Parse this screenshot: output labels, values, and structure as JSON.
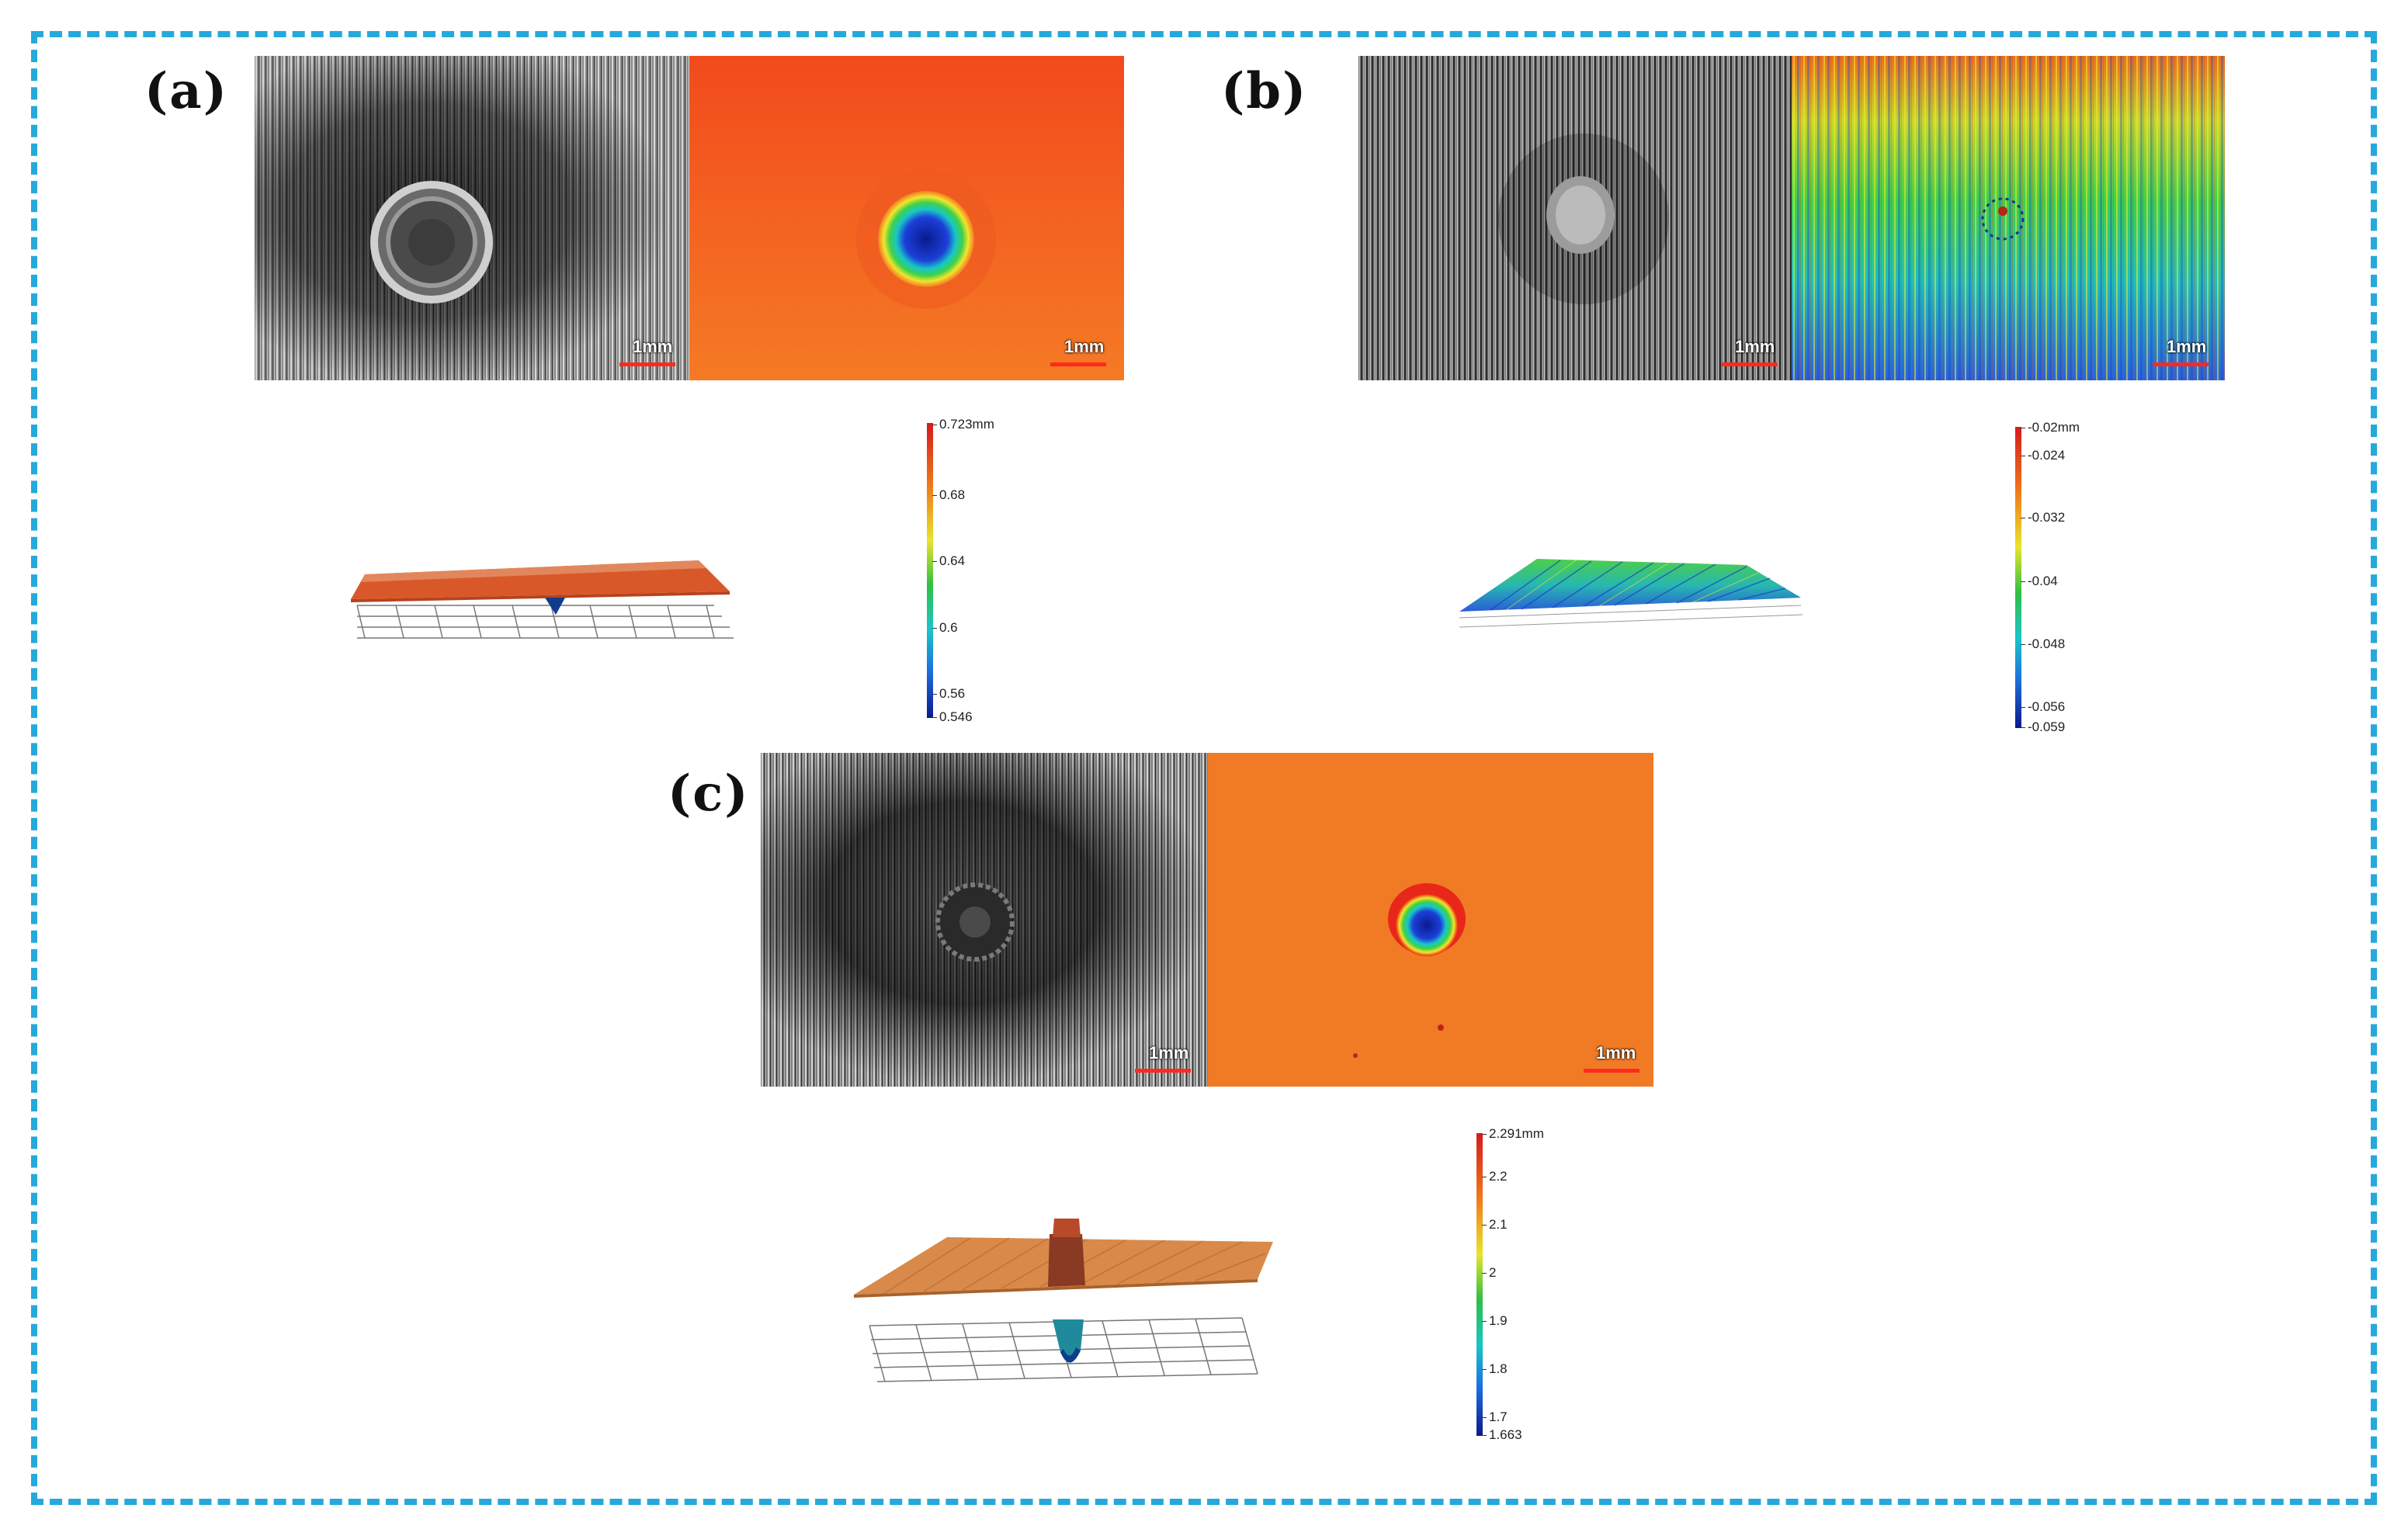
{
  "panels": {
    "a": {
      "label": "(a)",
      "scale_left": "1mm",
      "scale_right": "1mm",
      "colorbar_ticks": [
        "0.723mm",
        "0.68",
        "0.64",
        "0.6",
        "0.56",
        "0.546"
      ],
      "colorbar_range_mm": [
        0.546,
        0.723
      ]
    },
    "b": {
      "label": "(b)",
      "scale_left": "1mm",
      "scale_right": "1mm",
      "colorbar_ticks": [
        "-0.02mm",
        "-0.024",
        "-0.032",
        "-0.04",
        "-0.048",
        "-0.056",
        "-0.059"
      ],
      "colorbar_range_mm": [
        -0.059,
        -0.02
      ]
    },
    "c": {
      "label": "(c)",
      "scale_left": "1mm",
      "scale_right": "1mm",
      "colorbar_ticks": [
        "2.291mm",
        "2.2",
        "2.1",
        "2",
        "1.9",
        "1.8",
        "1.7",
        "1.663"
      ],
      "colorbar_range_mm": [
        1.663,
        2.291
      ]
    }
  },
  "colors": {
    "frame": "#25a9dc",
    "scalebar": "#ff2a1e"
  }
}
